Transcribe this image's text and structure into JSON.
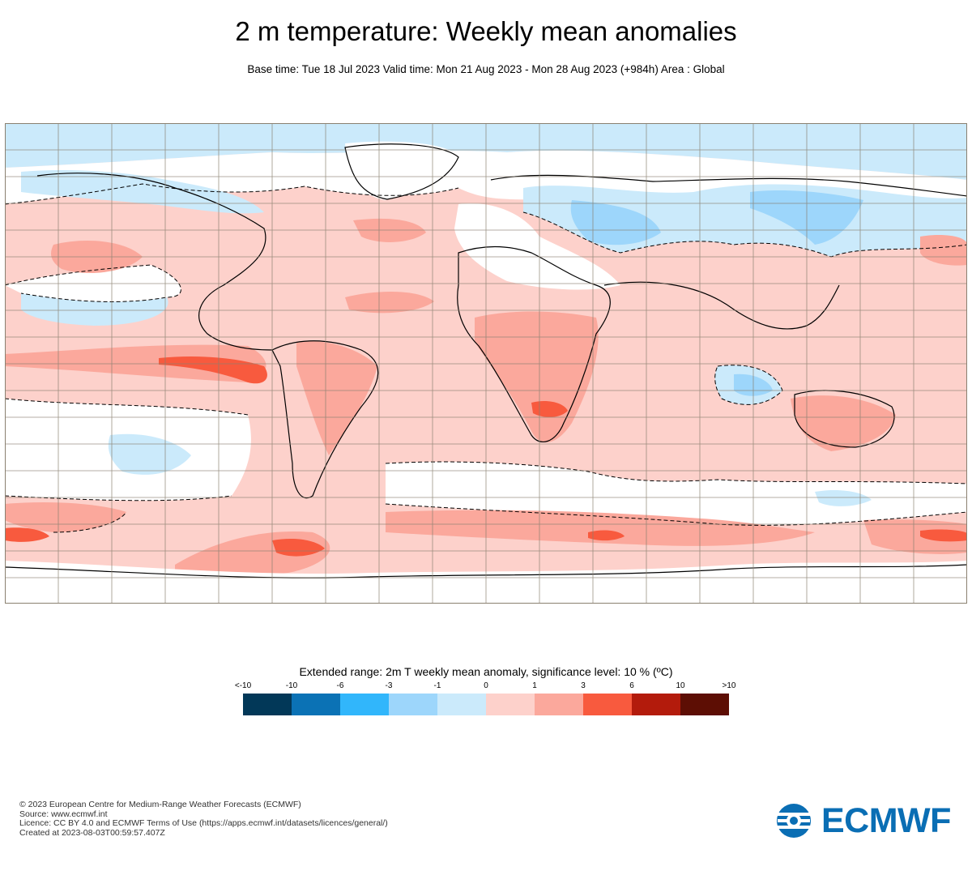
{
  "header": {
    "title": "2 m temperature: Weekly mean anomalies",
    "subtitle": "Base time: Tue 18 Jul 2023 Valid time: Mon 21 Aug 2023 - Mon 28 Aug 2023 (+984h) Area : Global"
  },
  "map": {
    "area": "Global",
    "projection": "equirectangular",
    "grid": "10° latitude/longitude",
    "land_outline_color": "#000000",
    "colors": {
      "ocean_base": "#fdd1cb",
      "neutral": "#ffffff",
      "light_blue": "#cbeafb",
      "mid_blue": "#9dd6fb",
      "light_red": "#fdd1cb",
      "mid_red": "#fba89c",
      "red": "#f85a3e",
      "dark_red": "#b31b0c"
    }
  },
  "legend": {
    "title": "Extended range: 2m T weekly mean anomaly, significance level: 10 % (ºC)",
    "ticks": [
      "<-10",
      "-10",
      "-6",
      "-3",
      "-1",
      "0",
      "1",
      "3",
      "6",
      "10",
      ">10"
    ],
    "colors": [
      "#023858",
      "#0b72b5",
      "#31b6fb",
      "#9dd6fb",
      "#cbeafb",
      "#fdd1cb",
      "#fba89c",
      "#f85a3e",
      "#b31b0c",
      "#5d0e04"
    ]
  },
  "credits": {
    "line1": "© 2023 European Centre for Medium-Range Weather Forecasts (ECMWF)",
    "line2": "Source: www.ecmwf.int",
    "line3": "Licence: CC BY 4.0 and ECMWF Terms of Use (https://apps.ecmwf.int/datasets/licences/general/)",
    "line4": "Created at 2023-08-03T00:59:57.407Z"
  },
  "logo": {
    "text": "ECMWF",
    "color": "#0a6eb4"
  }
}
